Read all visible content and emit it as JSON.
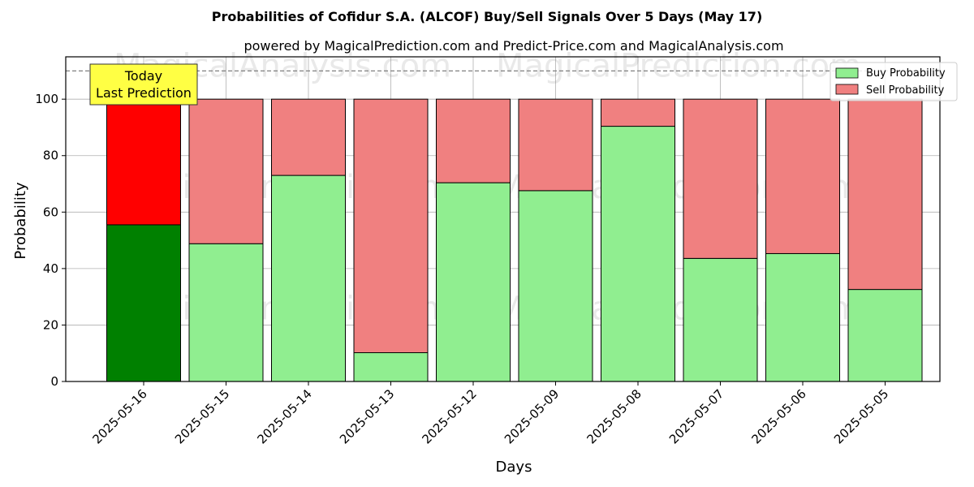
{
  "chart_data": {
    "type": "bar",
    "stacked": true,
    "title": "Probabilities of Cofidur S.A. (ALCOF) Buy/Sell Signals Over 5 Days (May 17)",
    "subtitle": "powered by MagicalPrediction.com and Predict-Price.com and MagicalAnalysis.com",
    "xlabel": "Days",
    "ylabel": "Probability",
    "ylim": [
      0,
      115
    ],
    "yticks": [
      0,
      20,
      40,
      60,
      80,
      100
    ],
    "grid": true,
    "legend_position": "top-right",
    "reference_line": 110,
    "categories": [
      "2025-05-16",
      "2025-05-15",
      "2025-05-14",
      "2025-05-13",
      "2025-05-12",
      "2025-05-09",
      "2025-05-08",
      "2025-05-07",
      "2025-05-06",
      "2025-05-05"
    ],
    "series": [
      {
        "name": "Buy Probability",
        "values": [
          55.5,
          48.8,
          73.0,
          10.2,
          70.4,
          67.6,
          90.4,
          43.6,
          45.3,
          32.6
        ]
      },
      {
        "name": "Sell Probability",
        "values": [
          44.5,
          51.2,
          27.0,
          89.8,
          29.6,
          32.4,
          9.6,
          56.4,
          54.7,
          67.4
        ]
      }
    ],
    "colors": {
      "buy": "#90ee90",
      "sell": "#f08080",
      "buy_highlight": "#008000",
      "sell_highlight": "#ff0000",
      "annotation_bg": "#ffff44"
    },
    "annotation": {
      "lines": [
        "Today",
        "Last Prediction"
      ],
      "category_index": 0
    },
    "watermarks": [
      "MagicalAnalysis.com",
      "MagicalPrediction.com"
    ]
  }
}
